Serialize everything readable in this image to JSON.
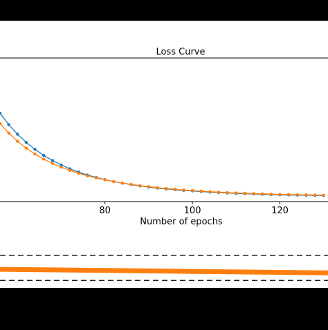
{
  "colors": {
    "series_blue": "#1f77b4",
    "series_orange": "#ff7f0e",
    "panel_bg": "#ffffff",
    "page_bg": "#000000"
  },
  "chart_data": [
    {
      "type": "line",
      "title": "Loss Curve",
      "xlabel": "Number of epochs",
      "ylabel": "",
      "xlim": [
        56,
        131
      ],
      "ylim": [
        0,
        1
      ],
      "x_ticks": [
        80,
        100,
        120
      ],
      "grid": false,
      "legend": "none",
      "series": [
        {
          "color": "#1f77b4",
          "x": [
            56,
            58,
            60,
            62,
            64,
            66,
            68,
            70,
            72,
            74,
            76,
            78,
            80,
            82,
            84,
            86,
            88,
            90,
            92,
            94,
            96,
            98,
            100,
            102,
            104,
            106,
            108,
            110,
            112,
            114,
            116,
            118,
            120,
            122,
            124,
            126,
            128,
            130
          ],
          "values": [
            0.615,
            0.536,
            0.469,
            0.412,
            0.364,
            0.322,
            0.286,
            0.255,
            0.228,
            0.205,
            0.185,
            0.168,
            0.153,
            0.14,
            0.128,
            0.118,
            0.109,
            0.101,
            0.094,
            0.088,
            0.083,
            0.078,
            0.074,
            0.07,
            0.066,
            0.063,
            0.06,
            0.057,
            0.055,
            0.053,
            0.051,
            0.049,
            0.047,
            0.046,
            0.045,
            0.044,
            0.043,
            0.042
          ]
        },
        {
          "color": "#ff7f0e",
          "x": [
            56,
            58,
            60,
            62,
            64,
            66,
            68,
            70,
            72,
            74,
            76,
            78,
            80,
            82,
            84,
            86,
            88,
            90,
            92,
            94,
            96,
            98,
            100,
            102,
            104,
            106,
            108,
            110,
            112,
            114,
            116,
            118,
            120,
            122,
            124,
            126,
            128,
            130
          ],
          "values": [
            0.545,
            0.477,
            0.42,
            0.372,
            0.331,
            0.296,
            0.266,
            0.24,
            0.217,
            0.197,
            0.18,
            0.165,
            0.152,
            0.14,
            0.129,
            0.12,
            0.111,
            0.104,
            0.097,
            0.091,
            0.086,
            0.081,
            0.077,
            0.073,
            0.069,
            0.066,
            0.063,
            0.06,
            0.058,
            0.056,
            0.054,
            0.052,
            0.05,
            0.049,
            0.048,
            0.047,
            0.046,
            0.045
          ]
        }
      ]
    },
    {
      "type": "line",
      "xlim": [
        0,
        1
      ],
      "ylim": [
        0,
        1
      ],
      "grid": false,
      "legend": "none",
      "reference_lines": [
        0.85,
        0.15
      ],
      "series": [
        {
          "color": "#ff7f0e",
          "x": [
            0,
            0.1,
            0.2,
            0.3,
            0.4,
            0.5,
            0.6,
            0.7,
            0.8,
            0.9,
            1.0
          ],
          "values": [
            0.46,
            0.45,
            0.44,
            0.43,
            0.42,
            0.41,
            0.4,
            0.39,
            0.38,
            0.37,
            0.36
          ]
        }
      ]
    }
  ]
}
